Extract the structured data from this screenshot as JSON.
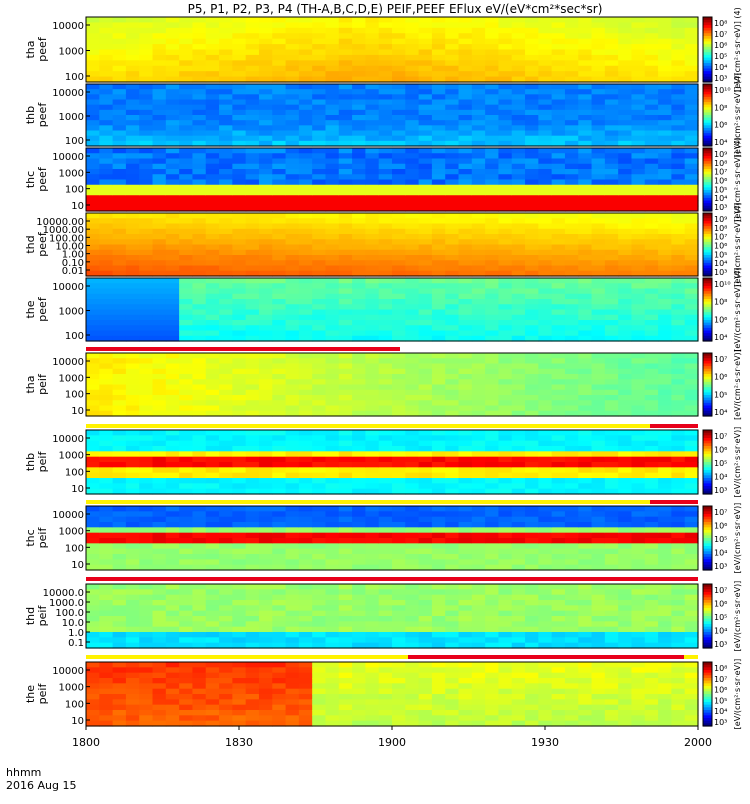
{
  "title": "P5, P1, P2, P3, P4 (TH-A,B,C,D,E) PEIF,PEEF EFlux eV/(eV*cm²*sec*sr)",
  "footer": {
    "time_label": "hhmm",
    "date_label": "2016 Aug 15"
  },
  "chart_data": {
    "type": "heatmap",
    "x_ticks": [
      "1800",
      "1830",
      "1900",
      "1930",
      "2000"
    ],
    "x_range": [
      "18:00",
      "20:00"
    ],
    "panels": [
      {
        "id": "tha_peef",
        "ylabel": [
          "tha",
          "peef"
        ],
        "yticks": [
          "10000",
          "1000",
          "100"
        ],
        "colorbar_ticks": [
          "10⁸",
          "10⁷",
          "10⁶",
          "10⁵",
          "10⁴",
          "10³"
        ],
        "colorbar_label": "[eV/(cm²·s·sr·eV)] (4)",
        "scheme": "yellowgreen"
      },
      {
        "id": "thb_peef",
        "ylabel": [
          "thb",
          "peef"
        ],
        "yticks": [
          "10000",
          "1000",
          "100"
        ],
        "colorbar_ticks": [
          "10¹⁰",
          "10⁸",
          "10⁶",
          "10⁴"
        ],
        "colorbar_label": "[eV/(cm²·s·sr·eV)] (4)",
        "scheme": "bluish"
      },
      {
        "id": "thc_peef",
        "ylabel": [
          "thc",
          "peef"
        ],
        "yticks": [
          "10000",
          "1000",
          "100",
          "10"
        ],
        "colorbar_ticks": [
          "10⁹",
          "10⁸",
          "10⁷",
          "10⁶",
          "10⁵",
          "10⁴",
          "10³"
        ],
        "colorbar_label": "[eV/(cm²·s·sr·eV)] (4)",
        "scheme": "bluered"
      },
      {
        "id": "thd_peef",
        "ylabel": [
          "thd",
          "peef"
        ],
        "yticks": [
          "10000.00",
          "1000.00",
          "100.00",
          "10.00",
          "1.00",
          "0.10",
          "0.01"
        ],
        "colorbar_ticks": [
          "10⁹",
          "10⁸",
          "10⁷",
          "10⁶",
          "10⁵",
          "10⁴",
          "10³"
        ],
        "colorbar_label": "[eV/(cm²·s·sr·eV)] (4)",
        "scheme": "orange"
      },
      {
        "id": "the_peef",
        "ylabel": [
          "the",
          "peef"
        ],
        "yticks": [
          "10000",
          "1000",
          "100"
        ],
        "colorbar_ticks": [
          "10¹⁰",
          "10⁸",
          "10⁶",
          "10⁴"
        ],
        "colorbar_label": "[eV/(cm²·s·sr·eV)] (4)",
        "scheme": "greenblue"
      },
      {
        "id": "tha_peif",
        "ylabel": [
          "tha",
          "peif"
        ],
        "yticks": [
          "10000",
          "1000",
          "100",
          "10"
        ],
        "colorbar_ticks": [
          "10⁷",
          "10⁶",
          "10⁵",
          "10⁴"
        ],
        "colorbar_label": "[eV/(cm²·s·sr·eV)]",
        "scheme": "yellowgreen2"
      },
      {
        "id": "thb_peif",
        "ylabel": [
          "thb",
          "peif"
        ],
        "yticks": [
          "10000",
          "1000",
          "100",
          "10"
        ],
        "colorbar_ticks": [
          "10⁷",
          "10⁶",
          "10⁵",
          "10⁴",
          "10³"
        ],
        "colorbar_label": "[eV/(cm²·s·sr·eV)]",
        "scheme": "bands"
      },
      {
        "id": "thc_peif",
        "ylabel": [
          "thc",
          "peif"
        ],
        "yticks": [
          "10000",
          "1000",
          "100",
          "10"
        ],
        "colorbar_ticks": [
          "10⁷",
          "10⁶",
          "10⁵",
          "10⁴",
          "10³"
        ],
        "colorbar_label": "[eV/(cm²·s·sr·eV)]",
        "scheme": "bands2"
      },
      {
        "id": "thd_peif",
        "ylabel": [
          "thd",
          "peif"
        ],
        "yticks": [
          "10000.0",
          "1000.0",
          "100.0",
          "10.0",
          "1.0",
          "0.1"
        ],
        "colorbar_ticks": [
          "10⁷",
          "10⁶",
          "10⁵",
          "10⁴",
          "10³"
        ],
        "colorbar_label": "[eV/(cm²·s·sr·eV)]",
        "scheme": "greenlow"
      },
      {
        "id": "the_peif",
        "ylabel": [
          "the",
          "peif"
        ],
        "yticks": [
          "10000",
          "1000",
          "100",
          "10"
        ],
        "colorbar_ticks": [
          "10⁸",
          "10⁷",
          "10⁶",
          "10⁵",
          "10⁴",
          "10³"
        ],
        "colorbar_label": "[eV/(cm²·s·sr·eV)]",
        "scheme": "warm"
      }
    ],
    "colors": {
      "bar_red": "#e8001a",
      "bar_yellow": "#fff200"
    }
  }
}
